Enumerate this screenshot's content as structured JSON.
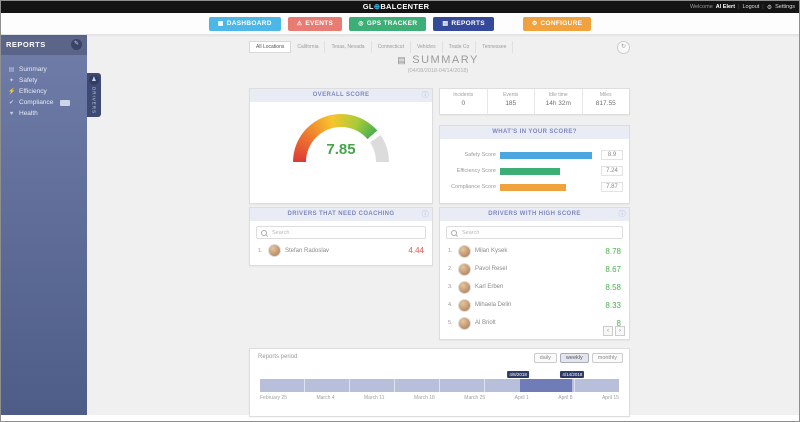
{
  "topbar": {
    "logo_prefix": "GL",
    "logo_suffix": "BALCENTER",
    "welcome": "Welcome",
    "username": "Al Elert",
    "logout": "Logout",
    "settings": "Settings"
  },
  "nav": {
    "items": [
      {
        "label": "DASHBOARD",
        "color": "#4db8e8"
      },
      {
        "label": "EVENTS",
        "color": "#e87c72"
      },
      {
        "label": "GPS TRACKER",
        "color": "#3eae77"
      },
      {
        "label": "REPORTS",
        "color": "#35499b"
      },
      {
        "label": "CONFIGURE",
        "color": "#f0a23f"
      }
    ]
  },
  "sidebar": {
    "title": "REPORTS",
    "items": [
      "Summary",
      "Safety",
      "Efficiency",
      "Compliance",
      "Health"
    ],
    "drivers_tab": "DRIVERS"
  },
  "tabs": [
    "All Locations",
    "California",
    "Texas, Nevada",
    "Connecticut",
    "Vehicles",
    "Trade Co",
    "Tennessee"
  ],
  "summary": {
    "title": "SUMMARY",
    "date_range": "(04/08/2018-04/14/2018)"
  },
  "overall": {
    "title": "OVERALL SCORE",
    "value": "7.85"
  },
  "stats": {
    "items": [
      {
        "label": "Incidents",
        "value": "0"
      },
      {
        "label": "Events",
        "value": "185"
      },
      {
        "label": "Idle time",
        "value": "14h 32m"
      },
      {
        "label": "Miles",
        "value": "817.55"
      }
    ]
  },
  "score_card": {
    "title": "WHAT'S IN YOUR SCORE?",
    "rows": [
      {
        "label": "Safety Score",
        "value": "8.9",
        "color": "#4aa7e0",
        "pct": 95
      },
      {
        "label": "Efficiency Score",
        "value": "7.24",
        "color": "#3eae77",
        "pct": 62
      },
      {
        "label": "Compliance Score",
        "value": "7.87",
        "color": "#f0a23f",
        "pct": 68
      }
    ]
  },
  "coaching": {
    "title": "DRIVERS THAT NEED COACHING",
    "search_placeholder": "Search",
    "drivers": [
      {
        "rank": "1.",
        "name": "Stefan Radoslav",
        "score": "4.44"
      }
    ]
  },
  "high_score": {
    "title": "DRIVERS WITH HIGH SCORE",
    "search_placeholder": "Search",
    "drivers": [
      {
        "rank": "1.",
        "name": "Milan Kysek",
        "score": "8.78"
      },
      {
        "rank": "2.",
        "name": "Pavol Resel",
        "score": "8.67"
      },
      {
        "rank": "3.",
        "name": "Karl Erben",
        "score": "8.58"
      },
      {
        "rank": "4.",
        "name": "Mihaela Delin",
        "score": "8.33"
      },
      {
        "rank": "5.",
        "name": "Al Briolt",
        "score": "8"
      }
    ]
  },
  "period": {
    "title": "Reports period",
    "buttons": [
      "daily",
      "weekly",
      "monthly"
    ],
    "start_label": "4/8/2018",
    "end_label": "4/14/2018",
    "axis": [
      "February 25",
      "March 4",
      "March 11",
      "March 18",
      "March 25",
      "April 1",
      "April 8",
      "April 15"
    ]
  },
  "icons": {
    "globe": "⊕",
    "gear": "⚙",
    "dashboard": "▦",
    "events": "⚠",
    "gps": "◎",
    "reports": "▤",
    "configure": "⚙",
    "reports_header": "✎",
    "summary": "▤",
    "safety": "✦",
    "efficiency": "⚡",
    "compliance": "✔",
    "health": "♥",
    "drivers": "♟",
    "refresh": "↻",
    "chart": "▤",
    "info": "ⓘ",
    "prev": "‹",
    "next": "›"
  }
}
